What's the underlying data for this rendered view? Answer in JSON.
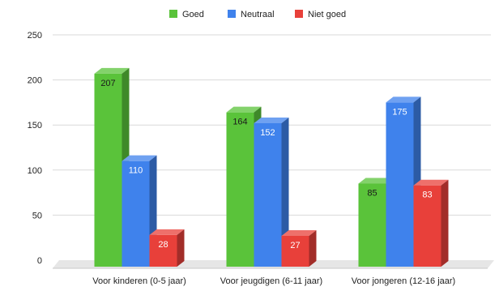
{
  "chart_data": {
    "type": "bar",
    "title": "",
    "xlabel": "",
    "ylabel": "",
    "categories": [
      "Voor kinderen (0-5 jaar)",
      "Voor jeugdigen (6-11 jaar)",
      "Voor jongeren (12-16 jaar)"
    ],
    "series": [
      {
        "name": "Goed",
        "values": [
          207,
          164,
          85
        ],
        "color": "#5ac33a"
      },
      {
        "name": "Neutraal",
        "values": [
          110,
          152,
          175
        ],
        "color": "#3f82ec"
      },
      {
        "name": "Niet goed",
        "values": [
          28,
          27,
          83
        ],
        "color": "#e8403a"
      }
    ],
    "ylim": [
      0,
      250
    ],
    "yticks": [
      0,
      50,
      100,
      150,
      200,
      250
    ],
    "grid": true,
    "legend": "top-center",
    "style": "3d-bars"
  }
}
